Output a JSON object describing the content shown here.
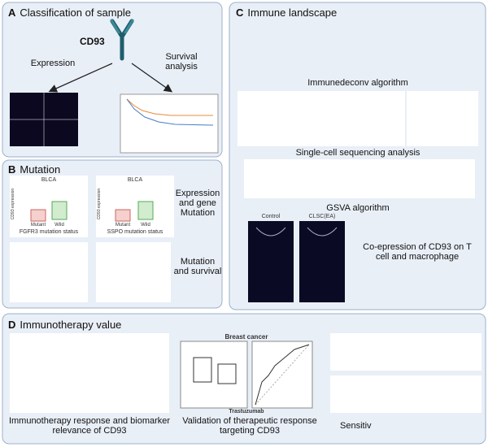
{
  "panel_a": {
    "letter": "A",
    "title": "Classification of sample",
    "gene": "CD93",
    "left_label": "Expression",
    "right_label": "Survival analysis"
  },
  "panel_b": {
    "letter": "B",
    "title": "Mutation",
    "plots": [
      {
        "title": "BLCA",
        "x_label": "FGFR3 mutation status",
        "y_label": "CD93 expression",
        "categories": [
          "Mutant",
          "Wild"
        ]
      },
      {
        "title": "BLCA",
        "x_label": "SSPO mutation status",
        "y_label": "CD93 expression",
        "categories": [
          "Mutant",
          "Wild"
        ]
      }
    ],
    "label_top": "Expression and gene Mutation",
    "label_bottom": "Mutation and survival"
  },
  "panel_c": {
    "letter": "C",
    "title": "Immune landscape",
    "captions": [
      "Immunedeconv algorithm",
      "Single-cell sequencing analysis",
      "GSVA algorithm"
    ],
    "image_titles": [
      "Control",
      "CLSC(EA)"
    ],
    "coexpression": "Co-epression of CD93 on T cell and macrophage"
  },
  "panel_d": {
    "letter": "D",
    "title": "Immunotherapy value",
    "chart_title": "Breast cancer",
    "chart_x": "Trastuzumab",
    "captions": [
      "Immunotherapy response and biomarker relevance of CD93",
      "Validation of therapeutic response targeting CD93",
      "Sensitiv"
    ]
  }
}
